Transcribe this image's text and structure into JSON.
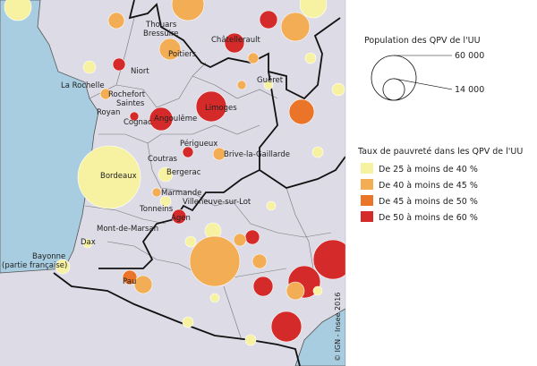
{
  "cities": [
    "Thouars",
    "Bressuire",
    "Châtellerault",
    "Poitiers",
    "Niort",
    "Guéret",
    "La Rochelle",
    "Rochefort",
    "Saintes",
    "Royan",
    "Angoulême",
    "Limoges",
    "Cognac",
    "Périgueux",
    "Brive-la-Gaillarde",
    "Coutras",
    "Bordeaux",
    "Bergerac",
    "Marmande",
    "Villeneuve-sur-Lot",
    "Tonneins",
    "Agen",
    "Mont-de-Marsan",
    "Dax",
    "Bayonne",
    "(partie française)",
    "Pau"
  ],
  "size_legend": {
    "title": "Population des QPV de l'UU",
    "values": [
      {
        "value": 60000,
        "label": "60 000"
      },
      {
        "value": 14000,
        "label": "14 000"
      }
    ]
  },
  "color_legend": {
    "title": "Taux de pauvreté dans les QPV de l'UU",
    "classes": [
      {
        "label": "De 25 à moins de 40 %",
        "color": "#f7f2a2"
      },
      {
        "label": "De 40 à moins de 45 %",
        "color": "#f2ad55"
      },
      {
        "label": "De 45 à moins de 50 %",
        "color": "#ea7427"
      },
      {
        "label": "De 50 à moins de 60 %",
        "color": "#d42a2a"
      }
    ]
  },
  "copyright": "© IGN - Insee 2016"
}
